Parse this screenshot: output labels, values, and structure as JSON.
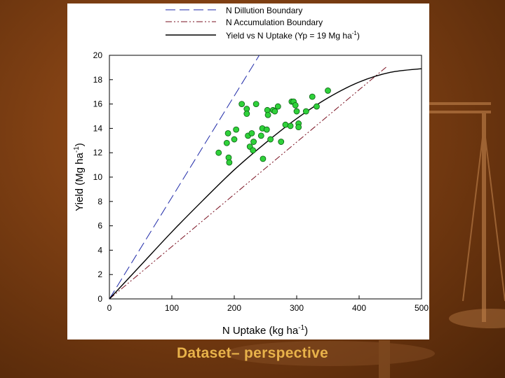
{
  "slide": {
    "caption": "Dataset– perspective"
  },
  "chart_data": {
    "type": "scatter",
    "xlabel": "N Uptake (kg ha",
    "xlabel_sup": "-1",
    "xlabel_tail": ")",
    "ylabel": "Yield (Mg ha",
    "ylabel_sup": "-1",
    "ylabel_tail": ")",
    "xlim": [
      0,
      500
    ],
    "ylim": [
      0,
      20
    ],
    "xticks": [
      0,
      100,
      200,
      300,
      400,
      500
    ],
    "yticks": [
      0,
      2,
      4,
      6,
      8,
      10,
      12,
      14,
      16,
      18,
      20
    ],
    "legend_position": "top",
    "legend": [
      {
        "label": "N Dillution Boundary",
        "style": "dashed",
        "color": "#1f2aa8"
      },
      {
        "label": "N Accumulation Boundary",
        "style": "dash-dot-dot",
        "color": "#7a1020"
      },
      {
        "label": "Yield vs N Uptake (Yp = 19 Mg ha",
        "sup": "-1",
        "tail": ")",
        "style": "solid",
        "color": "#000000"
      }
    ],
    "series": [
      {
        "key": "dilution",
        "style": "dashed",
        "color": "#1f2aa8",
        "x": [
          0,
          240
        ],
        "y": [
          0,
          20
        ]
      },
      {
        "key": "accumulation",
        "style": "dash-dot-dot",
        "color": "#7a1020",
        "x": [
          0,
          445
        ],
        "y": [
          0,
          19.1
        ]
      },
      {
        "key": "yield_curve",
        "style": "solid",
        "color": "#000000",
        "x": [
          0,
          50,
          100,
          150,
          200,
          250,
          300,
          350,
          400,
          450,
          500
        ],
        "y": [
          0,
          2.75,
          5.5,
          8.1,
          10.6,
          12.8,
          14.8,
          16.5,
          17.8,
          18.6,
          18.9
        ]
      },
      {
        "key": "observations",
        "style": "points",
        "color": "#2fd13a",
        "points": [
          [
            175,
            12.0
          ],
          [
            190,
            13.6
          ],
          [
            191,
            11.6
          ],
          [
            192,
            11.2
          ],
          [
            188,
            12.8
          ],
          [
            200,
            13.1
          ],
          [
            203,
            13.9
          ],
          [
            212,
            16.0
          ],
          [
            220,
            15.6
          ],
          [
            220,
            15.2
          ],
          [
            222,
            13.4
          ],
          [
            225,
            12.5
          ],
          [
            228,
            13.6
          ],
          [
            230,
            12.2
          ],
          [
            231,
            12.9
          ],
          [
            235,
            16.0
          ],
          [
            243,
            13.4
          ],
          [
            245,
            14.0
          ],
          [
            246,
            11.5
          ],
          [
            252,
            13.9
          ],
          [
            253,
            15.5
          ],
          [
            254,
            15.1
          ],
          [
            258,
            13.1
          ],
          [
            262,
            15.5
          ],
          [
            265,
            15.4
          ],
          [
            270,
            15.8
          ],
          [
            275,
            12.9
          ],
          [
            282,
            14.3
          ],
          [
            290,
            14.2
          ],
          [
            292,
            16.2
          ],
          [
            295,
            16.2
          ],
          [
            298,
            15.9
          ],
          [
            300,
            15.4
          ],
          [
            303,
            14.4
          ],
          [
            303,
            14.1
          ],
          [
            315,
            15.4
          ],
          [
            325,
            16.6
          ],
          [
            332,
            15.8
          ],
          [
            350,
            17.1
          ]
        ]
      }
    ]
  }
}
